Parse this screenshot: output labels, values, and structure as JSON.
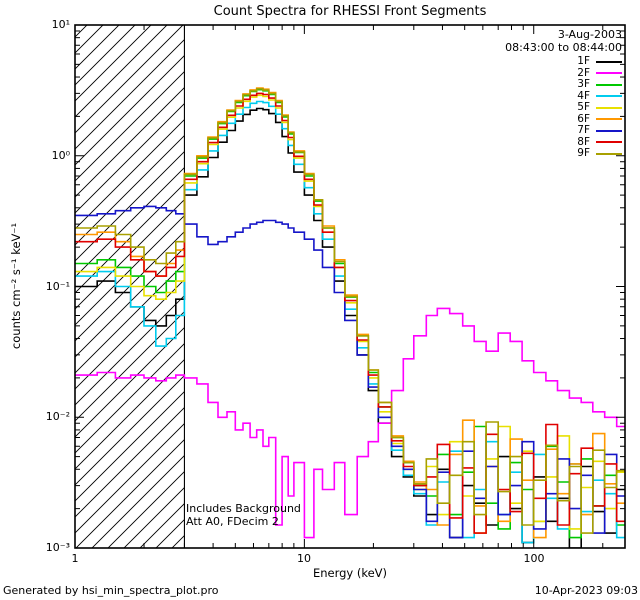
{
  "title": "Count Spectra for RHESSI Front Segments",
  "header": {
    "date": "3-Aug-2003",
    "time_range": "08:43:00 to 08:44:00"
  },
  "annotations": {
    "note1": "Includes Background",
    "note2": "Att A0, FDecim 2"
  },
  "footer": {
    "left": "Generated by hsi_min_spectra_plot.pro",
    "right": "10-Apr-2023 09:03"
  },
  "chart_data": {
    "type": "line",
    "style": "log-log step spectra",
    "title": "Count Spectra for RHESSI Front Segments",
    "xlabel": "Energy (keV)",
    "ylabel": "counts cm⁻² s⁻¹ keV⁻¹",
    "xscale": "log",
    "yscale": "log",
    "xlim": [
      1,
      250
    ],
    "ylim": [
      0.001,
      10
    ],
    "x_tick_labels": [
      "1",
      "10",
      "100"
    ],
    "y_tick_labels": [
      "10¹",
      "10⁰",
      "10⁻¹",
      "10⁻²",
      "10⁻³"
    ],
    "legend_position": "top-right",
    "grid": false,
    "hatched_region": {
      "x_start": 1,
      "x_end": 3,
      "meaning": "excluded low-energy range"
    },
    "bin_edges": [
      1.0,
      1.25,
      1.5,
      1.75,
      2.0,
      2.25,
      2.5,
      2.75,
      3.0,
      3.4,
      3.8,
      4.2,
      4.6,
      5.0,
      5.4,
      5.8,
      6.2,
      6.6,
      7.0,
      7.5,
      8.0,
      8.5,
      9.0,
      10,
      11,
      12,
      13.5,
      15,
      17,
      19,
      21,
      24,
      27,
      30,
      34,
      38,
      43,
      49,
      55,
      62,
      70,
      79,
      89,
      100,
      113,
      127,
      143,
      161,
      181,
      204,
      230,
      250
    ],
    "series": [
      {
        "name": "1F",
        "color": "#000000",
        "values": [
          0.1,
          0.11,
          0.09,
          0.07,
          0.055,
          0.05,
          0.06,
          0.08,
          0.5,
          0.69,
          0.97,
          1.27,
          1.56,
          1.84,
          2.07,
          2.23,
          2.3,
          2.25,
          2.1,
          1.8,
          1.4,
          1.05,
          0.75,
          0.5,
          0.32,
          0.2,
          0.11,
          0.06,
          0.03,
          0.016,
          0.009,
          0.005,
          0.0035,
          0.0025,
          0.0018,
          0.004,
          0.0012,
          0.003,
          0.0022,
          0.0015,
          0.005,
          0.002,
          0.0011,
          0.0035,
          0.0016,
          0.0024,
          0.001,
          0.0042,
          0.0019,
          0.0013,
          0.0028
        ]
      },
      {
        "name": "2F",
        "color": "#FF00FF",
        "values": [
          0.021,
          0.022,
          0.02,
          0.021,
          0.02,
          0.019,
          0.02,
          0.021,
          0.02,
          0.018,
          0.013,
          0.01,
          0.011,
          0.008,
          0.009,
          0.007,
          0.008,
          0.006,
          0.007,
          0.0015,
          0.005,
          0.0025,
          0.0045,
          0.0012,
          0.004,
          0.0028,
          0.0045,
          0.0018,
          0.005,
          0.0065,
          0.009,
          0.016,
          0.028,
          0.042,
          0.06,
          0.068,
          0.062,
          0.05,
          0.038,
          0.032,
          0.044,
          0.038,
          0.027,
          0.022,
          0.019,
          0.016,
          0.014,
          0.013,
          0.011,
          0.01,
          0.0085
        ]
      },
      {
        "name": "3F",
        "color": "#00C800",
        "values": [
          0.15,
          0.16,
          0.14,
          0.12,
          0.1,
          0.09,
          0.11,
          0.13,
          0.7,
          0.96,
          1.34,
          1.76,
          2.18,
          2.56,
          2.88,
          3.1,
          3.2,
          3.14,
          2.94,
          2.56,
          1.98,
          1.47,
          1.06,
          0.7,
          0.45,
          0.28,
          0.15,
          0.083,
          0.042,
          0.022,
          0.012,
          0.007,
          0.0045,
          0.003,
          0.0025,
          0.0052,
          0.0018,
          0.0038,
          0.0085,
          0.0022,
          0.0014,
          0.0045,
          0.0028,
          0.0016,
          0.006,
          0.0032,
          0.0012,
          0.0048,
          0.0021,
          0.0036,
          0.0015
        ]
      },
      {
        "name": "4F",
        "color": "#00CCEE",
        "values": [
          0.12,
          0.13,
          0.1,
          0.07,
          0.05,
          0.035,
          0.04,
          0.06,
          0.55,
          0.78,
          1.09,
          1.43,
          1.77,
          2.08,
          2.34,
          2.52,
          2.6,
          2.55,
          2.39,
          2.08,
          1.61,
          1.2,
          0.86,
          0.57,
          0.36,
          0.23,
          0.12,
          0.067,
          0.034,
          0.018,
          0.01,
          0.0056,
          0.0036,
          0.0026,
          0.0015,
          0.0032,
          0.0055,
          0.0012,
          0.0028,
          0.0065,
          0.0018,
          0.0038,
          0.0011,
          0.0052,
          0.0024,
          0.0014,
          0.0044,
          0.0019,
          0.0033,
          0.0026,
          0.0012
        ]
      },
      {
        "name": "5F",
        "color": "#E8E000",
        "values": [
          0.13,
          0.14,
          0.12,
          0.1,
          0.085,
          0.08,
          0.09,
          0.11,
          0.62,
          0.87,
          1.22,
          1.6,
          1.97,
          2.32,
          2.61,
          2.81,
          2.9,
          2.84,
          2.67,
          2.32,
          1.8,
          1.33,
          0.96,
          0.64,
          0.41,
          0.26,
          0.14,
          0.075,
          0.038,
          0.02,
          0.011,
          0.0063,
          0.004,
          0.0028,
          0.0042,
          0.0018,
          0.0065,
          0.0025,
          0.0013,
          0.0048,
          0.0085,
          0.0022,
          0.0055,
          0.0016,
          0.0035,
          0.0072,
          0.0014,
          0.0029,
          0.0046,
          0.002,
          0.0038
        ]
      },
      {
        "name": "6F",
        "color": "#FF9800",
        "values": [
          0.25,
          0.26,
          0.22,
          0.17,
          0.13,
          0.12,
          0.15,
          0.19,
          0.73,
          1.0,
          1.39,
          1.82,
          2.24,
          2.64,
          2.97,
          3.19,
          3.3,
          3.23,
          3.04,
          2.64,
          2.05,
          1.52,
          1.09,
          0.73,
          0.46,
          0.29,
          0.16,
          0.086,
          0.043,
          0.023,
          0.013,
          0.0072,
          0.0046,
          0.0032,
          0.0028,
          0.0015,
          0.0052,
          0.0095,
          0.0021,
          0.0042,
          0.0016,
          0.0068,
          0.0033,
          0.0012,
          0.0057,
          0.0026,
          0.0044,
          0.0018,
          0.0075,
          0.0031,
          0.0022
        ]
      },
      {
        "name": "7F",
        "color": "#1515C8",
        "values": [
          0.35,
          0.36,
          0.38,
          0.4,
          0.41,
          0.4,
          0.38,
          0.36,
          0.3,
          0.24,
          0.21,
          0.22,
          0.24,
          0.26,
          0.28,
          0.3,
          0.31,
          0.32,
          0.32,
          0.31,
          0.3,
          0.28,
          0.26,
          0.23,
          0.19,
          0.14,
          0.09,
          0.055,
          0.03,
          0.017,
          0.01,
          0.006,
          0.004,
          0.0028,
          0.0016,
          0.0038,
          0.0012,
          0.0055,
          0.0024,
          0.0042,
          0.0018,
          0.003,
          0.0065,
          0.0014,
          0.0026,
          0.0048,
          0.002,
          0.0036,
          0.0013,
          0.0052,
          0.0025
        ]
      },
      {
        "name": "8F",
        "color": "#E00000",
        "values": [
          0.22,
          0.23,
          0.2,
          0.16,
          0.13,
          0.12,
          0.14,
          0.17,
          0.66,
          0.9,
          1.26,
          1.65,
          2.04,
          2.4,
          2.7,
          2.9,
          3.0,
          2.94,
          2.76,
          2.4,
          1.86,
          1.38,
          0.99,
          0.66,
          0.42,
          0.26,
          0.14,
          0.078,
          0.039,
          0.021,
          0.012,
          0.0066,
          0.0042,
          0.003,
          0.0035,
          0.0062,
          0.0017,
          0.0041,
          0.0013,
          0.0074,
          0.0028,
          0.0019,
          0.0053,
          0.0024,
          0.0088,
          0.0015,
          0.0037,
          0.0058,
          0.0021,
          0.0044,
          0.0016
        ]
      },
      {
        "name": "9F",
        "color": "#A8A000",
        "values": [
          0.28,
          0.29,
          0.25,
          0.2,
          0.16,
          0.15,
          0.18,
          0.22,
          0.72,
          0.98,
          1.37,
          1.79,
          2.21,
          2.6,
          2.93,
          3.14,
          3.25,
          3.18,
          2.99,
          2.6,
          2.02,
          1.5,
          1.07,
          0.72,
          0.46,
          0.28,
          0.155,
          0.084,
          0.042,
          0.023,
          0.013,
          0.007,
          0.0045,
          0.0031,
          0.0048,
          0.0022,
          0.0036,
          0.0065,
          0.0018,
          0.0092,
          0.0027,
          0.005,
          0.0015,
          0.0033,
          0.0061,
          0.0023,
          0.0042,
          0.0013,
          0.0056,
          0.0029,
          0.0039
        ]
      }
    ]
  }
}
